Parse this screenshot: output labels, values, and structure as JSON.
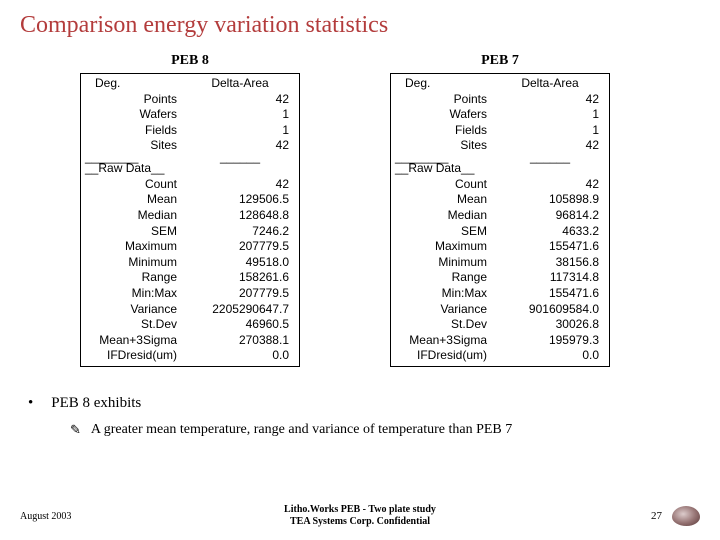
{
  "title": "Comparison energy variation statistics",
  "tables": [
    {
      "title": "PEB 8",
      "col1": "Deg.",
      "col2": "Delta-Area",
      "degrees": [
        {
          "label": "Points",
          "val": "42"
        },
        {
          "label": "Wafers",
          "val": "1"
        },
        {
          "label": "Fields",
          "val": "1"
        },
        {
          "label": "Sites",
          "val": "42"
        }
      ],
      "raw_header": "__Raw Data__",
      "raw": [
        {
          "label": "Count",
          "val": "42"
        },
        {
          "label": "Mean",
          "val": "129506.5"
        },
        {
          "label": "Median",
          "val": "128648.8"
        },
        {
          "label": "SEM",
          "val": "7246.2"
        },
        {
          "label": "Maximum",
          "val": "207779.5"
        },
        {
          "label": "Minimum",
          "val": "49518.0"
        },
        {
          "label": "Range",
          "val": "158261.6"
        },
        {
          "label": "Min:Max",
          "val": "207779.5"
        },
        {
          "label": "Variance",
          "val": "2205290647.7"
        },
        {
          "label": "St.Dev",
          "val": "46960.5"
        },
        {
          "label": "Mean+3Sigma",
          "val": "270388.1"
        },
        {
          "label": "IFDresid(um)",
          "val": "0.0"
        }
      ]
    },
    {
      "title": "PEB 7",
      "col1": "Deg.",
      "col2": "Delta-Area",
      "degrees": [
        {
          "label": "Points",
          "val": "42"
        },
        {
          "label": "Wafers",
          "val": "1"
        },
        {
          "label": "Fields",
          "val": "1"
        },
        {
          "label": "Sites",
          "val": "42"
        }
      ],
      "raw_header": "__Raw Data__",
      "raw": [
        {
          "label": "Count",
          "val": "42"
        },
        {
          "label": "Mean",
          "val": "105898.9"
        },
        {
          "label": "Median",
          "val": "96814.2"
        },
        {
          "label": "SEM",
          "val": "4633.2"
        },
        {
          "label": "Maximum",
          "val": "155471.6"
        },
        {
          "label": "Minimum",
          "val": "38156.8"
        },
        {
          "label": "Range",
          "val": "117314.8"
        },
        {
          "label": "Min:Max",
          "val": "155471.6"
        },
        {
          "label": "Variance",
          "val": "901609584.0"
        },
        {
          "label": "St.Dev",
          "val": "30026.8"
        },
        {
          "label": "Mean+3Sigma",
          "val": "195979.3"
        },
        {
          "label": "IFDresid(um)",
          "val": "0.0"
        }
      ]
    }
  ],
  "bullet1": "PEB 8 exhibits",
  "bullet2": "A greater mean temperature, range and variance of temperature than PEB 7",
  "footer": {
    "left": "August 2003",
    "center1": "Litho.Works PEB - Two plate study",
    "center2": "TEA Systems Corp. Confidential",
    "page": "27"
  }
}
